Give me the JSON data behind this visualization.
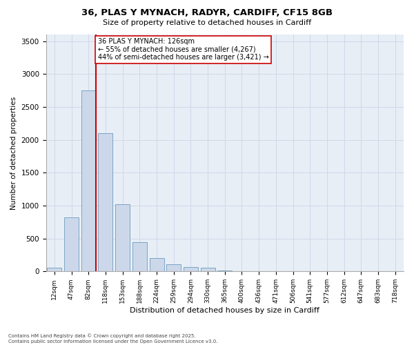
{
  "title_line1": "36, PLAS Y MYNACH, RADYR, CARDIFF, CF15 8GB",
  "title_line2": "Size of property relative to detached houses in Cardiff",
  "xlabel": "Distribution of detached houses by size in Cardiff",
  "ylabel": "Number of detached properties",
  "categories": [
    "12sqm",
    "47sqm",
    "82sqm",
    "118sqm",
    "153sqm",
    "188sqm",
    "224sqm",
    "259sqm",
    "294sqm",
    "330sqm",
    "365sqm",
    "400sqm",
    "436sqm",
    "471sqm",
    "506sqm",
    "541sqm",
    "577sqm",
    "612sqm",
    "647sqm",
    "683sqm",
    "718sqm"
  ],
  "values": [
    55,
    820,
    2750,
    2100,
    1020,
    440,
    200,
    110,
    70,
    55,
    10,
    5,
    3,
    2,
    1,
    0,
    0,
    0,
    0,
    0,
    0
  ],
  "bar_color": "#ccd8ea",
  "bar_edge_color": "#6a9bbf",
  "red_line_index": 2,
  "annotation_line1": "36 PLAS Y MYNACH: 126sqm",
  "annotation_line2": "← 55% of detached houses are smaller (4,267)",
  "annotation_line3": "44% of semi-detached houses are larger (3,421) →",
  "red_line_color": "#cc0000",
  "annotation_box_facecolor": "#ffffff",
  "annotation_box_edgecolor": "#cc0000",
  "grid_color": "#d0d8e8",
  "plot_bg_color": "#e8eef6",
  "ylim": [
    0,
    3600
  ],
  "yticks": [
    0,
    500,
    1000,
    1500,
    2000,
    2500,
    3000,
    3500
  ],
  "footer_line1": "Contains HM Land Registry data © Crown copyright and database right 2025.",
  "footer_line2": "Contains public sector information licensed under the Open Government Licence v3.0."
}
